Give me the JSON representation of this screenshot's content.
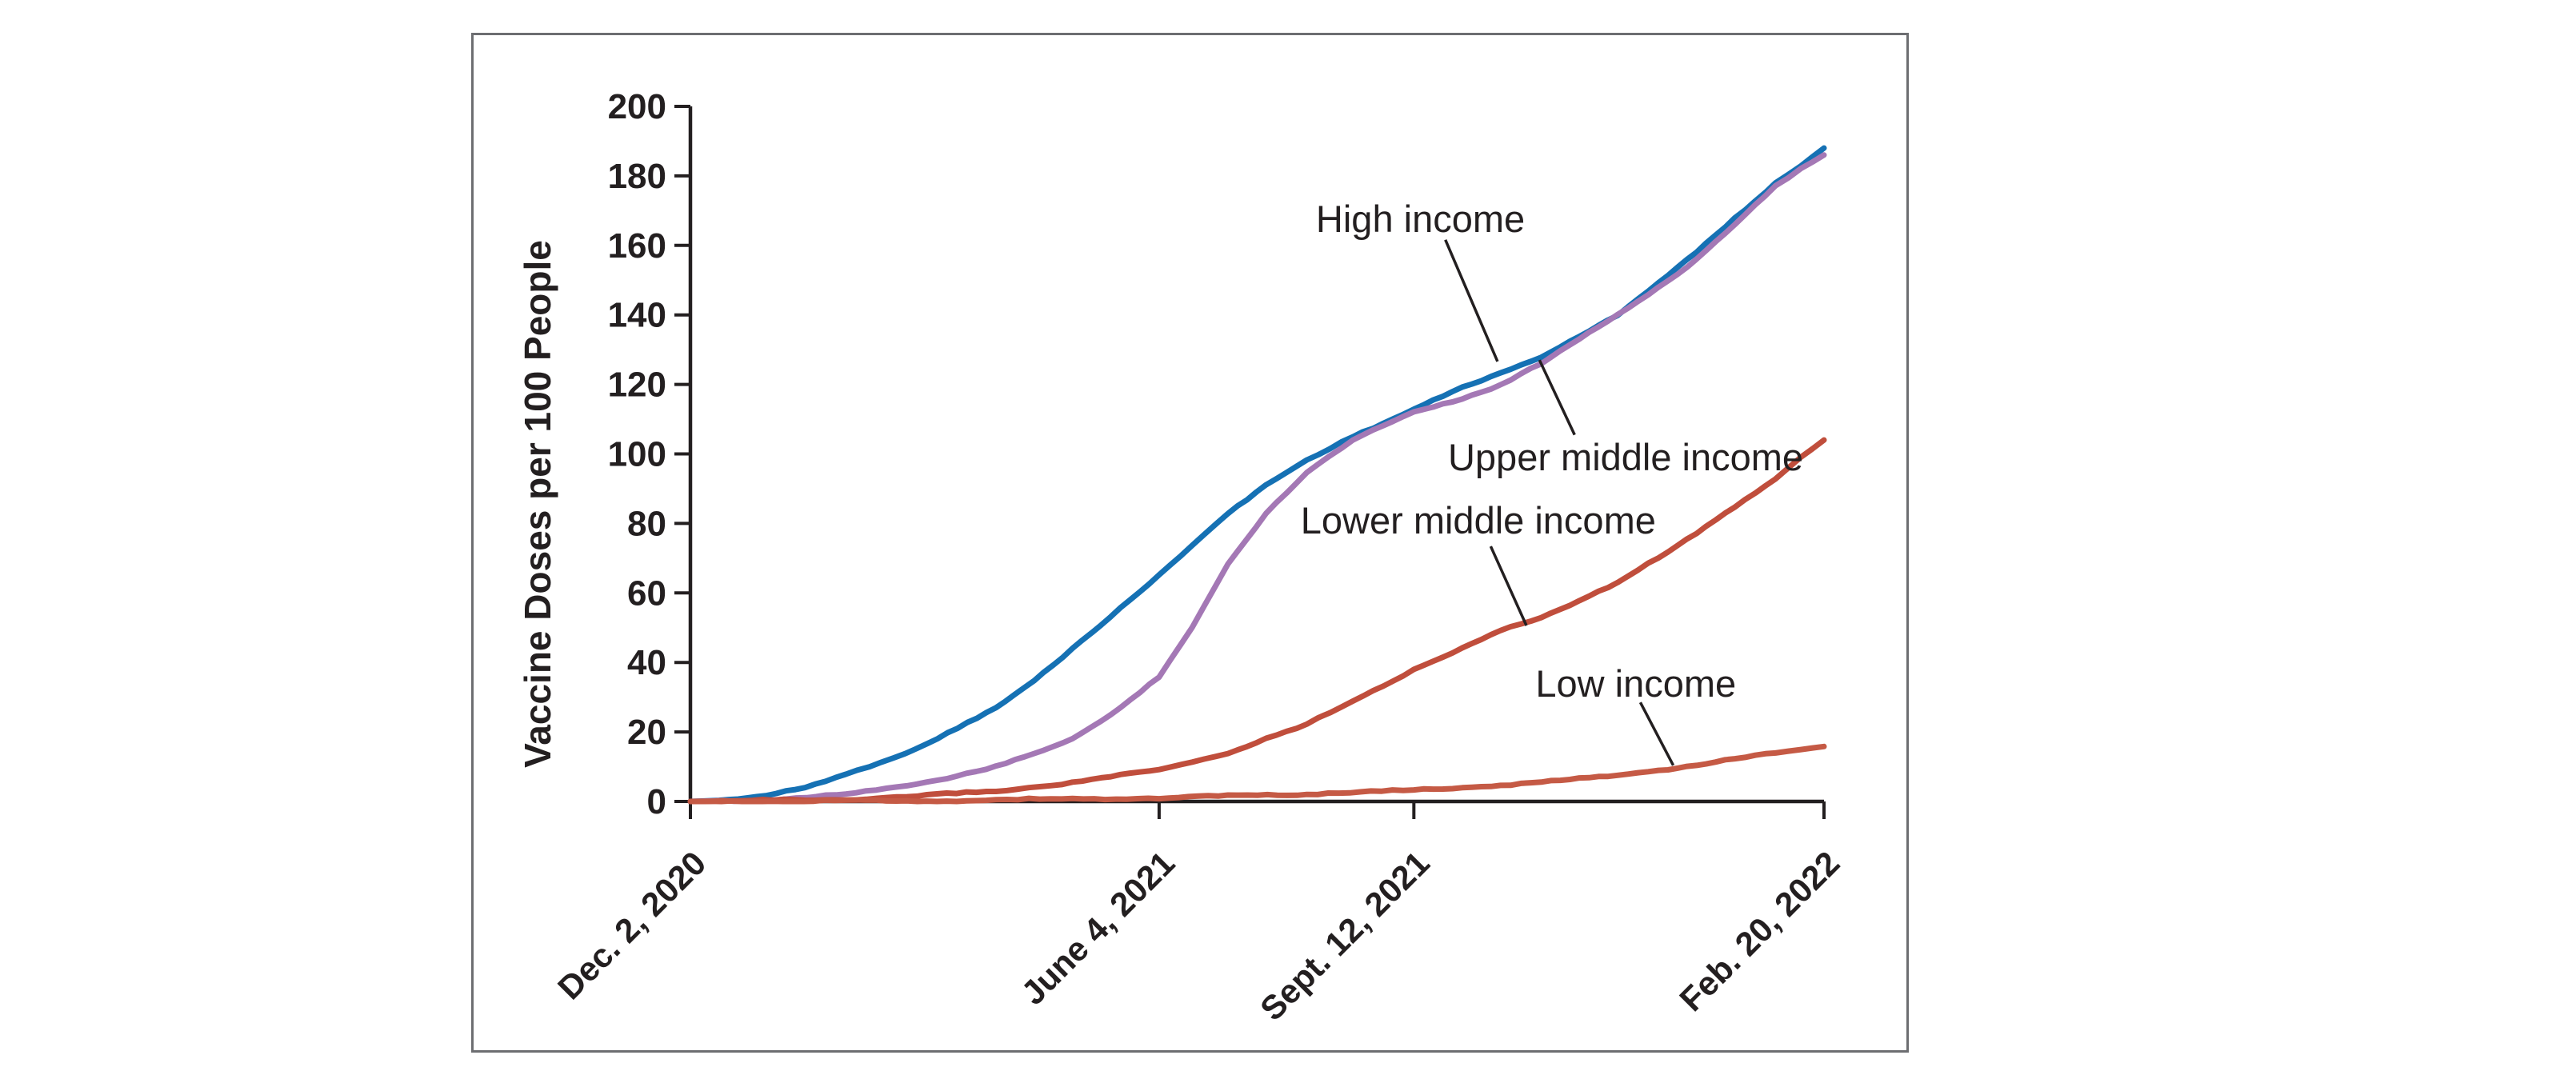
{
  "figure": {
    "border_color": "#6D6E71",
    "background": "#FFFFFF",
    "axis_color": "#231F20",
    "text_color": "#231F20"
  },
  "chart_data": {
    "type": "line",
    "title": "",
    "xlabel": "",
    "ylabel": "Vaccine Doses per 100 People",
    "ylim": [
      0,
      200
    ],
    "y_ticks": [
      0,
      20,
      40,
      60,
      80,
      100,
      120,
      140,
      160,
      180,
      200
    ],
    "x_domain_days": [
      0,
      445
    ],
    "x_ticks": [
      {
        "day": 0,
        "label": "Dec. 2, 2020"
      },
      {
        "day": 184,
        "label": "June 4, 2021"
      },
      {
        "day": 284,
        "label": "Sept. 12, 2021"
      },
      {
        "day": 445,
        "label": "Feb. 20, 2022"
      }
    ],
    "grid": false,
    "legend_position": "inline-annotations",
    "series": [
      {
        "name": "High income",
        "color": "#1571B4",
        "points": [
          [
            0,
            0
          ],
          [
            15,
            0.4
          ],
          [
            30,
            1.5
          ],
          [
            45,
            4
          ],
          [
            61,
            8
          ],
          [
            75,
            11.5
          ],
          [
            89,
            15
          ],
          [
            105,
            21
          ],
          [
            120,
            27
          ],
          [
            135,
            35
          ],
          [
            150,
            44
          ],
          [
            165,
            53
          ],
          [
            184,
            65
          ],
          [
            197,
            74
          ],
          [
            211,
            83
          ],
          [
            226,
            91
          ],
          [
            242,
            98
          ],
          [
            260,
            105
          ],
          [
            284,
            113
          ],
          [
            303,
            119
          ],
          [
            318,
            123
          ],
          [
            334,
            128
          ],
          [
            349,
            134
          ],
          [
            364,
            140
          ],
          [
            380,
            149
          ],
          [
            395,
            158
          ],
          [
            410,
            168
          ],
          [
            426,
            178
          ],
          [
            436,
            183
          ],
          [
            445,
            188
          ]
        ]
      },
      {
        "name": "Upper middle income",
        "color": "#A478B5",
        "points": [
          [
            0,
            0
          ],
          [
            30,
            0.5
          ],
          [
            61,
            2
          ],
          [
            89,
            5
          ],
          [
            120,
            10
          ],
          [
            135,
            13.5
          ],
          [
            150,
            18
          ],
          [
            165,
            25
          ],
          [
            184,
            36
          ],
          [
            197,
            50
          ],
          [
            211,
            68
          ],
          [
            226,
            83
          ],
          [
            242,
            95
          ],
          [
            260,
            104
          ],
          [
            284,
            112
          ],
          [
            303,
            116
          ],
          [
            318,
            120
          ],
          [
            334,
            126
          ],
          [
            349,
            133
          ],
          [
            364,
            140
          ],
          [
            380,
            148
          ],
          [
            395,
            156
          ],
          [
            410,
            166
          ],
          [
            426,
            177
          ],
          [
            436,
            182
          ],
          [
            445,
            186
          ]
        ]
      },
      {
        "name": "Lower middle income",
        "color": "#C04E3C",
        "points": [
          [
            0,
            0
          ],
          [
            61,
            0.5
          ],
          [
            89,
            1.5
          ],
          [
            120,
            3
          ],
          [
            150,
            5.5
          ],
          [
            165,
            7
          ],
          [
            184,
            9
          ],
          [
            197,
            11.5
          ],
          [
            211,
            14
          ],
          [
            226,
            18
          ],
          [
            242,
            22
          ],
          [
            260,
            29
          ],
          [
            284,
            38
          ],
          [
            303,
            44
          ],
          [
            318,
            49
          ],
          [
            334,
            53
          ],
          [
            349,
            58
          ],
          [
            364,
            63
          ],
          [
            380,
            70
          ],
          [
            395,
            77
          ],
          [
            410,
            85
          ],
          [
            426,
            93
          ],
          [
            436,
            99
          ],
          [
            445,
            104
          ]
        ]
      },
      {
        "name": "Low income",
        "color": "#C55A45",
        "points": [
          [
            0,
            0
          ],
          [
            89,
            0.2
          ],
          [
            120,
            0.4
          ],
          [
            150,
            0.7
          ],
          [
            184,
            1
          ],
          [
            211,
            1.5
          ],
          [
            242,
            2.2
          ],
          [
            284,
            3.2
          ],
          [
            303,
            4
          ],
          [
            318,
            4.7
          ],
          [
            334,
            5.5
          ],
          [
            349,
            6.5
          ],
          [
            364,
            7.5
          ],
          [
            380,
            9
          ],
          [
            395,
            10.5
          ],
          [
            410,
            12.2
          ],
          [
            426,
            13.8
          ],
          [
            436,
            15
          ],
          [
            445,
            15.8
          ]
        ]
      }
    ],
    "annotations": [
      {
        "label": "High income",
        "xf": 0.644,
        "yv": 167.5,
        "leader": [
          [
            0.666,
            161.6
          ],
          [
            0.712,
            126.6
          ]
        ]
      },
      {
        "label": "Upper middle income",
        "xf": 0.825,
        "yv": 99.0,
        "leader": [
          [
            0.749,
            127.0
          ],
          [
            0.78,
            105.5
          ]
        ]
      },
      {
        "label": "Lower middle income",
        "xf": 0.695,
        "yv": 80.8,
        "leader": [
          [
            0.706,
            73.4
          ],
          [
            0.7375,
            50.6
          ]
        ]
      },
      {
        "label": "Low income",
        "xf": 0.834,
        "yv": 33.8,
        "leader": [
          [
            0.838,
            28.5
          ],
          [
            0.867,
            10.4
          ]
        ]
      }
    ]
  }
}
